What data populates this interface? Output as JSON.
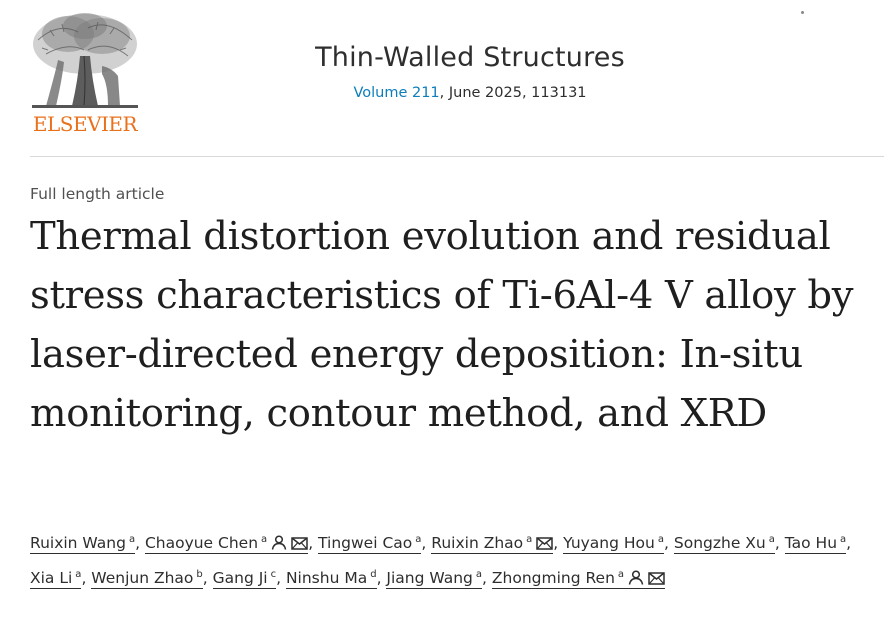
{
  "publisher": {
    "name": "ELSEVIER",
    "logo_icon": "elsevier-tree-logo"
  },
  "journal": {
    "title": "Thin-Walled Structures",
    "volume_link": "Volume 211",
    "details": ", June 2025, 113131"
  },
  "article": {
    "type": "Full length article",
    "title": "Thermal distortion evolution and residual stress characteristics of Ti-6Al-4 V alloy by laser-directed energy deposition: In-situ monitoring, contour method, and XRD"
  },
  "authors": [
    {
      "name": "Ruixin Wang",
      "aff": "a"
    },
    {
      "name": "Chaoyue Chen",
      "aff": "a",
      "icons": [
        "person-icon",
        "envelope-icon"
      ]
    },
    {
      "name": "Tingwei Cao",
      "aff": "a"
    },
    {
      "name": "Ruixin Zhao",
      "aff": "a",
      "icons": [
        "envelope-icon"
      ]
    },
    {
      "name": "Yuyang Hou",
      "aff": "a"
    },
    {
      "name": "Songzhe Xu",
      "aff": "a"
    },
    {
      "name": "Tao Hu",
      "aff": "a"
    },
    {
      "name": "Xia Li",
      "aff": "a"
    },
    {
      "name": "Wenjun Zhao",
      "aff": "b"
    },
    {
      "name": "Gang Ji",
      "aff": "c"
    },
    {
      "name": "Ninshu Ma",
      "aff": "d"
    },
    {
      "name": "Jiang Wang",
      "aff": "a"
    },
    {
      "name": "Zhongming Ren",
      "aff": "a",
      "icons": [
        "person-icon",
        "envelope-icon"
      ]
    }
  ],
  "colors": {
    "publisher_orange": "#e9711c",
    "link_blue": "#0c7dbb",
    "text": "#1f1f1f"
  }
}
